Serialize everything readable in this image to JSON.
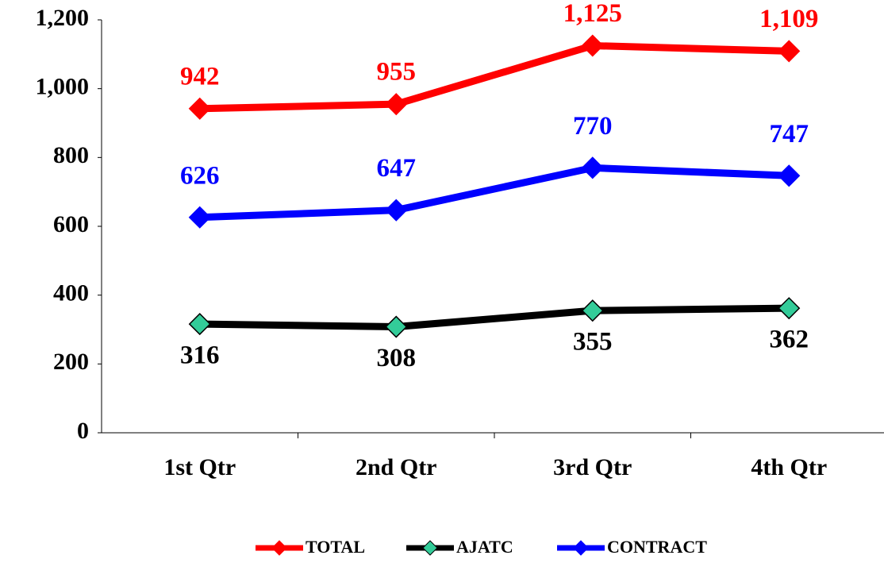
{
  "chart_data": {
    "type": "line",
    "categories": [
      "1st Qtr",
      "2nd Qtr",
      "3rd Qtr",
      "4th Qtr"
    ],
    "series": [
      {
        "name": "TOTAL",
        "color": "#ff0000",
        "values": [
          942,
          955,
          1125,
          1109
        ],
        "value_labels": [
          "942",
          "955",
          "1,125",
          "1,109"
        ]
      },
      {
        "name": "AJATC",
        "color": "#000000",
        "marker_color": "#33cc99",
        "values": [
          316,
          308,
          355,
          362
        ],
        "value_labels": [
          "316",
          "308",
          "355",
          "362"
        ]
      },
      {
        "name": "CONTRACT",
        "color": "#0000ff",
        "values": [
          626,
          647,
          770,
          747
        ],
        "value_labels": [
          "626",
          "647",
          "770",
          "747"
        ]
      }
    ],
    "ylim": [
      0,
      1200
    ],
    "yticks": [
      0,
      200,
      400,
      600,
      800,
      {
        "value": 1000,
        "label": "1,000"
      },
      {
        "value": 1200,
        "label": "1,200"
      }
    ],
    "grid": false,
    "legend": "bottom"
  }
}
